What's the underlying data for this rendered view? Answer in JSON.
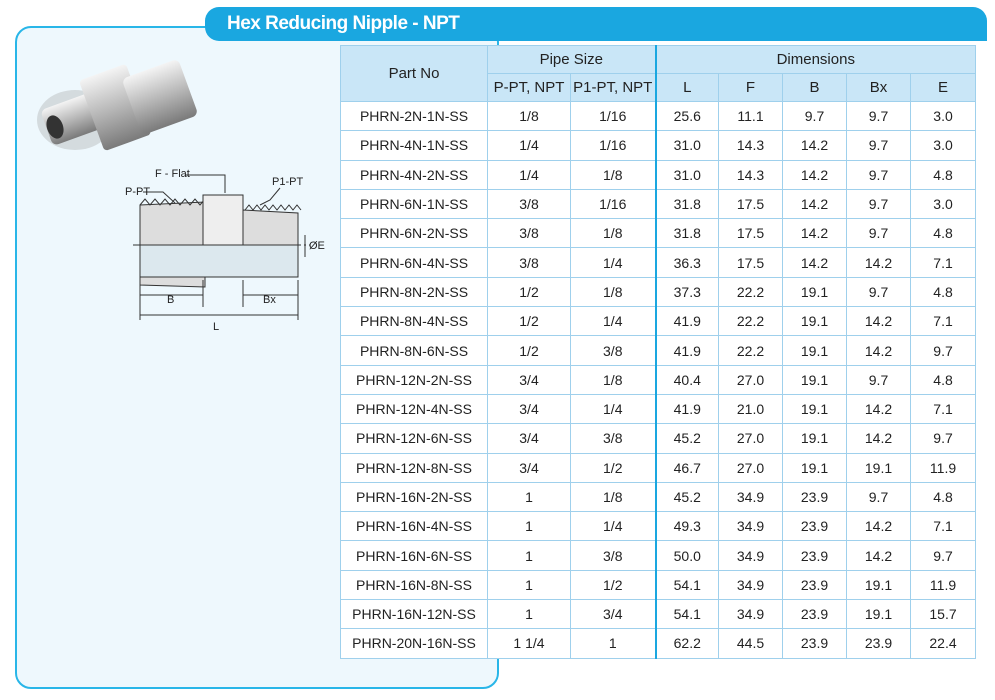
{
  "title": "Hex Reducing Nipple - NPT",
  "diagram": {
    "f_flat": "F - Flat",
    "p_pt": "P-PT",
    "p1_pt": "P1-PT",
    "e": "ØE",
    "b": "B",
    "bx": "Bx",
    "l": "L"
  },
  "table": {
    "group_headers": [
      "Part No",
      "Pipe Size",
      "Dimensions"
    ],
    "sub_headers": [
      "P-PT, NPT",
      "P1-PT, NPT",
      "L",
      "F",
      "B",
      "Bx",
      "E"
    ],
    "rows": [
      [
        "PHRN-2N-1N-SS",
        "1/8",
        "1/16",
        "25.6",
        "11.1",
        "9.7",
        "9.7",
        "3.0"
      ],
      [
        "PHRN-4N-1N-SS",
        "1/4",
        "1/16",
        "31.0",
        "14.3",
        "14.2",
        "9.7",
        "3.0"
      ],
      [
        "PHRN-4N-2N-SS",
        "1/4",
        "1/8",
        "31.0",
        "14.3",
        "14.2",
        "9.7",
        "4.8"
      ],
      [
        "PHRN-6N-1N-SS",
        "3/8",
        "1/16",
        "31.8",
        "17.5",
        "14.2",
        "9.7",
        "3.0"
      ],
      [
        "PHRN-6N-2N-SS",
        "3/8",
        "1/8",
        "31.8",
        "17.5",
        "14.2",
        "9.7",
        "4.8"
      ],
      [
        "PHRN-6N-4N-SS",
        "3/8",
        "1/4",
        "36.3",
        "17.5",
        "14.2",
        "14.2",
        "7.1"
      ],
      [
        "PHRN-8N-2N-SS",
        "1/2",
        "1/8",
        "37.3",
        "22.2",
        "19.1",
        "9.7",
        "4.8"
      ],
      [
        "PHRN-8N-4N-SS",
        "1/2",
        "1/4",
        "41.9",
        "22.2",
        "19.1",
        "14.2",
        "7.1"
      ],
      [
        "PHRN-8N-6N-SS",
        "1/2",
        "3/8",
        "41.9",
        "22.2",
        "19.1",
        "14.2",
        "9.7"
      ],
      [
        "PHRN-12N-2N-SS",
        "3/4",
        "1/8",
        "40.4",
        "27.0",
        "19.1",
        "9.7",
        "4.8"
      ],
      [
        "PHRN-12N-4N-SS",
        "3/4",
        "1/4",
        "41.9",
        "21.0",
        "19.1",
        "14.2",
        "7.1"
      ],
      [
        "PHRN-12N-6N-SS",
        "3/4",
        "3/8",
        "45.2",
        "27.0",
        "19.1",
        "14.2",
        "9.7"
      ],
      [
        "PHRN-12N-8N-SS",
        "3/4",
        "1/2",
        "46.7",
        "27.0",
        "19.1",
        "19.1",
        "11.9"
      ],
      [
        "PHRN-16N-2N-SS",
        "1",
        "1/8",
        "45.2",
        "34.9",
        "23.9",
        "9.7",
        "4.8"
      ],
      [
        "PHRN-16N-4N-SS",
        "1",
        "1/4",
        "49.3",
        "34.9",
        "23.9",
        "14.2",
        "7.1"
      ],
      [
        "PHRN-16N-6N-SS",
        "1",
        "3/8",
        "50.0",
        "34.9",
        "23.9",
        "14.2",
        "9.7"
      ],
      [
        "PHRN-16N-8N-SS",
        "1",
        "1/2",
        "54.1",
        "34.9",
        "23.9",
        "19.1",
        "11.9"
      ],
      [
        "PHRN-16N-12N-SS",
        "1",
        "3/4",
        "54.1",
        "34.9",
        "23.9",
        "19.1",
        "15.7"
      ],
      [
        "PHRN-20N-16N-SS",
        "1 1/4",
        "1",
        "62.2",
        "44.5",
        "23.9",
        "23.9",
        "22.4"
      ]
    ]
  }
}
